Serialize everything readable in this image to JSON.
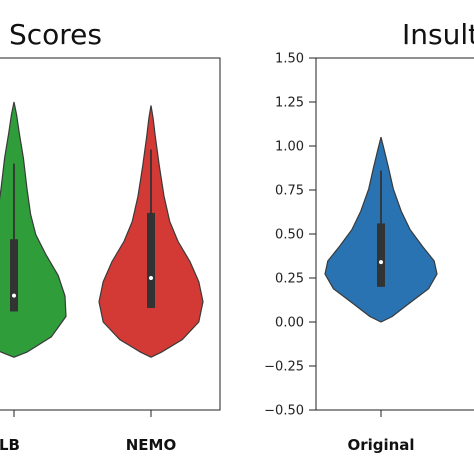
{
  "chart_data": [
    {
      "type": "violin",
      "title": "Scores",
      "title_partial": true,
      "categories": [
        "ILLB",
        "NEMO"
      ],
      "colors": [
        "#2e9d3a",
        "#d33a35"
      ],
      "series": [
        {
          "name": "ILLB",
          "min": -0.2,
          "max": 1.25,
          "q1": 0.06,
          "q3": 0.47,
          "median": 0.15,
          "whisker_low": 0.06,
          "whisker_high": 0.9
        },
        {
          "name": "NEMO",
          "min": -0.2,
          "max": 1.23,
          "q1": 0.08,
          "q3": 0.62,
          "median": 0.25,
          "whisker_low": 0.08,
          "whisker_high": 0.98
        }
      ]
    },
    {
      "type": "violin",
      "title": "Insult",
      "title_partial": true,
      "categories": [
        "Original"
      ],
      "colors": [
        "#2a73b3"
      ],
      "ylim": [
        -0.5,
        1.5
      ],
      "yticks": [
        "1.50",
        "1.25",
        "1.00",
        "0.75",
        "0.50",
        "0.25",
        "0.00",
        "−0.25",
        "−0.50"
      ],
      "series": [
        {
          "name": "Original",
          "min": 0.0,
          "max": 1.05,
          "q1": 0.2,
          "q3": 0.56,
          "median": 0.34,
          "whisker_low": 0.2,
          "whisker_high": 0.86
        }
      ]
    }
  ]
}
